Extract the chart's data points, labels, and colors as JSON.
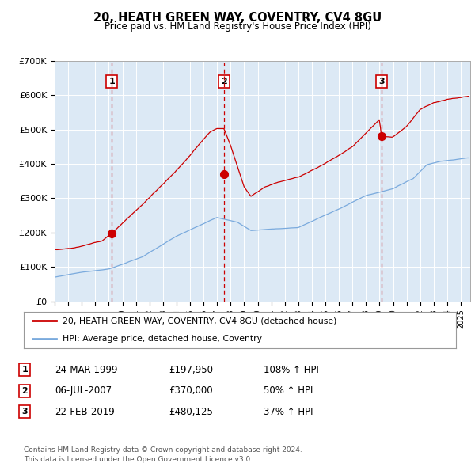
{
  "title": "20, HEATH GREEN WAY, COVENTRY, CV4 8GU",
  "subtitle": "Price paid vs. HM Land Registry's House Price Index (HPI)",
  "background_color": "#dce9f5",
  "plot_bg_color": "#dce9f5",
  "red_line_color": "#cc0000",
  "blue_line_color": "#7aaadd",
  "vline_color": "#cc0000",
  "sale_points": [
    {
      "date_num": 1999.23,
      "price": 197950,
      "label": "1"
    },
    {
      "date_num": 2007.51,
      "price": 370000,
      "label": "2"
    },
    {
      "date_num": 2019.14,
      "price": 480125,
      "label": "3"
    }
  ],
  "table_rows": [
    {
      "num": "1",
      "date": "24-MAR-1999",
      "price": "£197,950",
      "change": "108% ↑ HPI"
    },
    {
      "num": "2",
      "date": "06-JUL-2007",
      "price": "£370,000",
      "change": "50% ↑ HPI"
    },
    {
      "num": "3",
      "date": "22-FEB-2019",
      "price": "£480,125",
      "change": "37% ↑ HPI"
    }
  ],
  "legend_red": "20, HEATH GREEN WAY, COVENTRY, CV4 8GU (detached house)",
  "legend_blue": "HPI: Average price, detached house, Coventry",
  "footer": "Contains HM Land Registry data © Crown copyright and database right 2024.\nThis data is licensed under the Open Government Licence v3.0.",
  "ylim": [
    0,
    700000
  ],
  "yticks": [
    0,
    100000,
    200000,
    300000,
    400000,
    500000,
    600000,
    700000
  ],
  "ytick_labels": [
    "£0",
    "£100K",
    "£200K",
    "£300K",
    "£400K",
    "£500K",
    "£600K",
    "£700K"
  ],
  "xlim_start": 1995.0,
  "xlim_end": 2025.7
}
